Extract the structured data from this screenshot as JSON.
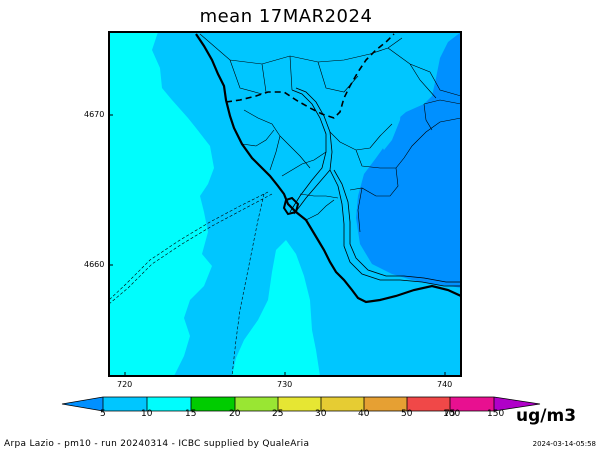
{
  "title": "mean 17MAR2024",
  "field": {
    "colors": {
      "5-10": "#00c6ff",
      "10-15": "#00fdfd",
      "15-20": "#00cc00",
      "20-25": "#99e633",
      "25-30": "#e6e633",
      "30-40": "#e6cc33",
      "40-50": "#e6a033",
      "50-75": "#f04848",
      "75-100": "#e81090",
      "100-150": "#b000c8",
      ">150": "#8c00e0",
      "<5": "#0090ff"
    }
  },
  "axes": {
    "x_ticks": [
      "720",
      "730",
      "740"
    ],
    "y_ticks": [
      "4670",
      "4660"
    ]
  },
  "colorbar": {
    "labels": [
      "5",
      "10",
      "15",
      "20",
      "25",
      "30",
      "40",
      "50",
      "75",
      "100",
      "150"
    ],
    "unit": "ug/m3"
  },
  "footer": {
    "credit": "Arpa Lazio - pm10 - run 20240314 - ICBC supplied by QualeAria",
    "timestamp": "2024-03-14-05:58"
  }
}
